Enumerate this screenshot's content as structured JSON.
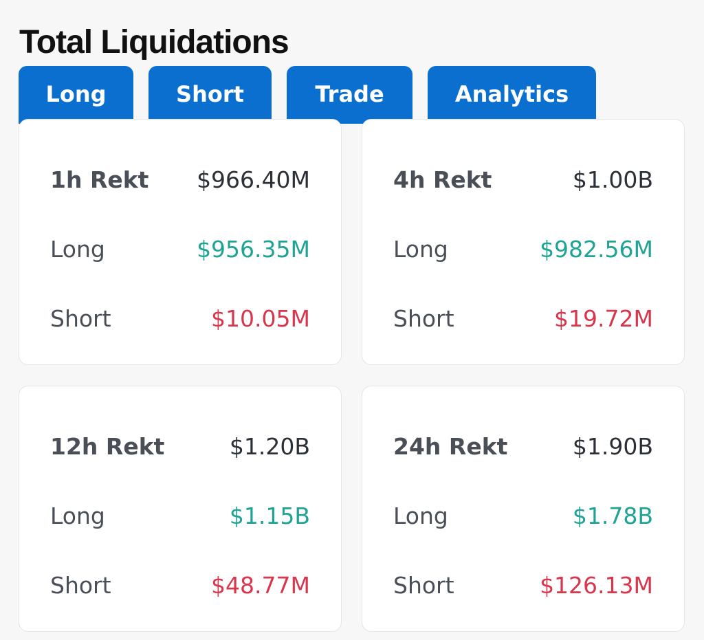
{
  "page": {
    "title": "Total Liquidations"
  },
  "tabs": [
    {
      "label": "Long"
    },
    {
      "label": "Short"
    },
    {
      "label": "Trade"
    },
    {
      "label": "Analytics"
    }
  ],
  "colors": {
    "tab_background": "#0b6fd0",
    "long_value": "#1fa393",
    "short_value": "#d8364d",
    "card_background": "#ffffff",
    "page_background": "#f7f7f8"
  },
  "cards": [
    {
      "period_label": "1h Rekt",
      "total": "$966.40M",
      "long_label": "Long",
      "long_value": "$956.35M",
      "short_label": "Short",
      "short_value": "$10.05M"
    },
    {
      "period_label": "4h Rekt",
      "total": "$1.00B",
      "long_label": "Long",
      "long_value": "$982.56M",
      "short_label": "Short",
      "short_value": "$19.72M"
    },
    {
      "period_label": "12h Rekt",
      "total": "$1.20B",
      "long_label": "Long",
      "long_value": "$1.15B",
      "short_label": "Short",
      "short_value": "$48.77M"
    },
    {
      "period_label": "24h Rekt",
      "total": "$1.90B",
      "long_label": "Long",
      "long_value": "$1.78B",
      "short_label": "Short",
      "short_value": "$126.13M"
    }
  ]
}
